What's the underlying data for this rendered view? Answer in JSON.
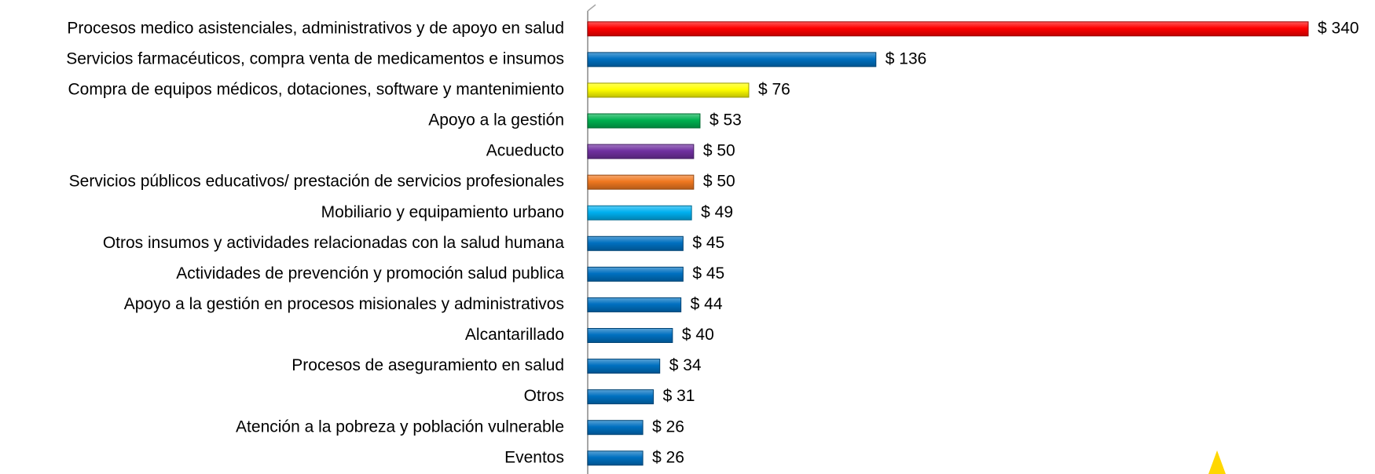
{
  "chart_data": {
    "type": "bar",
    "orientation": "horizontal",
    "categories": [
      "Procesos medico asistenciales, administrativos y de apoyo en salud",
      "Servicios farmacéuticos, compra venta de medicamentos e insumos",
      "Compra de equipos médicos, dotaciones, software y mantenimiento",
      "Apoyo a la gestión",
      "Acueducto",
      "Servicios públicos educativos/ prestación de servicios profesionales",
      "Mobiliario y equipamiento urbano",
      "Otros insumos y actividades relacionadas con la salud humana",
      "Actividades de prevención y promoción salud publica",
      "Apoyo a la gestión en procesos misionales y administrativos",
      "Alcantarillado",
      "Procesos de aseguramiento en salud",
      "Otros",
      "Atención a la pobreza y población vulnerable",
      "Eventos"
    ],
    "values": [
      340,
      136,
      76,
      53,
      50,
      50,
      49,
      45,
      45,
      44,
      40,
      34,
      31,
      26,
      26
    ],
    "value_labels": [
      "$ 340",
      "$ 136",
      "$ 76",
      "$ 53",
      "$ 50",
      "$ 50",
      "$ 49",
      "$ 45",
      "$ 45",
      "$ 44",
      "$ 40",
      "$ 34",
      "$ 31",
      "$ 26",
      "$ 26"
    ],
    "colors": [
      "#ff0000",
      "#0070c0",
      "#ffff00",
      "#00b050",
      "#7030a0",
      "#f07820",
      "#00b0f0",
      "#0070c0",
      "#0070c0",
      "#0070c0",
      "#0070c0",
      "#0070c0",
      "#0070c0",
      "#0070c0",
      "#0070c0"
    ],
    "xlim": [
      0,
      340
    ]
  }
}
